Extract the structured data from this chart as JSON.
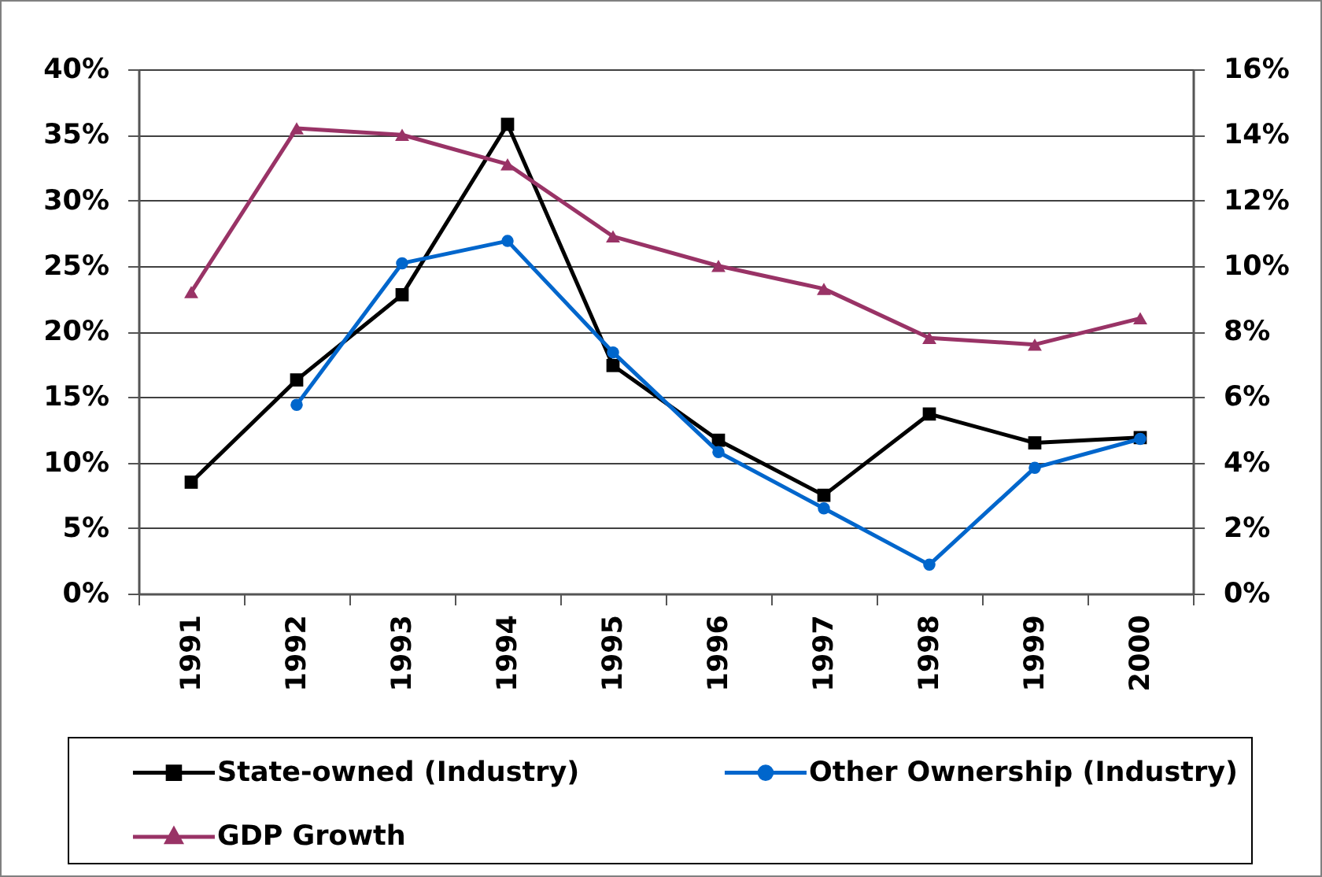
{
  "chart_data": {
    "type": "line",
    "categories": [
      "1991",
      "1992",
      "1993",
      "1994",
      "1995",
      "1996",
      "1997",
      "1998",
      "1999",
      "2000"
    ],
    "series": [
      {
        "name": "State-owned (Industry)",
        "color": "#000000",
        "marker": "square",
        "values": [
          8.5,
          16.3,
          22.8,
          35.8,
          17.4,
          11.7,
          7.5,
          13.7,
          11.5,
          11.9
        ]
      },
      {
        "name": "Other Ownership (Industry)",
        "color": "#0066cc",
        "marker": "circle",
        "values": [
          null,
          14.4,
          25.2,
          26.9,
          18.4,
          10.8,
          6.5,
          2.2,
          9.6,
          11.8
        ]
      },
      {
        "name": "GDP Growth",
        "color": "#993366",
        "marker": "triangle",
        "axis": "y2",
        "values": [
          9.2,
          14.2,
          14.0,
          13.1,
          10.9,
          10.0,
          9.3,
          7.8,
          7.6,
          8.4
        ]
      }
    ],
    "ylim": [
      0,
      40
    ],
    "yticks": [
      {
        "value": 0,
        "label": "0%"
      },
      {
        "value": 5,
        "label": "5%"
      },
      {
        "value": 10,
        "label": "10%"
      },
      {
        "value": 15,
        "label": "15%"
      },
      {
        "value": 20,
        "label": "20%"
      },
      {
        "value": 25,
        "label": "25%"
      },
      {
        "value": 30,
        "label": "30%"
      },
      {
        "value": 35,
        "label": "35%"
      },
      {
        "value": 40,
        "label": "40%"
      }
    ],
    "y2lim": [
      0,
      16
    ],
    "y2ticks": [
      {
        "value": 0,
        "label": "0%"
      },
      {
        "value": 2,
        "label": "2%"
      },
      {
        "value": 4,
        "label": "4%"
      },
      {
        "value": 6,
        "label": "6%"
      },
      {
        "value": 8,
        "label": "8%"
      },
      {
        "value": 10,
        "label": "10%"
      },
      {
        "value": 12,
        "label": "12%"
      },
      {
        "value": 14,
        "label": "14%"
      },
      {
        "value": 16,
        "label": "16%"
      }
    ],
    "grid": "y",
    "legend": "bottom",
    "line_style": "solid"
  }
}
